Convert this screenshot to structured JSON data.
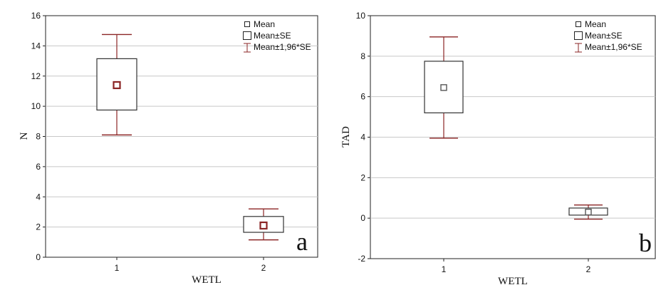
{
  "chart_data": [
    {
      "type": "box",
      "panel_label": "a",
      "xlabel": "WETL",
      "ylabel": "N",
      "categories": [
        "1",
        "2"
      ],
      "ylim": [
        0,
        16
      ],
      "yticks": [
        "0",
        "2",
        "4",
        "6",
        "8",
        "10",
        "12",
        "14",
        "16"
      ],
      "grid": true,
      "legend_position": "top-right",
      "legend": [
        "Mean",
        "Mean±SE",
        "Mean±1,96*SE"
      ],
      "stats": [
        {
          "category": "1",
          "mean": 11.4,
          "se_low": 9.75,
          "se_high": 13.15,
          "ci_low": 8.1,
          "ci_high": 14.75
        },
        {
          "category": "2",
          "mean": 2.1,
          "se_low": 1.65,
          "se_high": 2.7,
          "ci_low": 1.15,
          "ci_high": 3.2
        }
      ],
      "colors": {
        "box": "#333333",
        "whisker": "#8b2525",
        "mean_marker": "#8b2525"
      }
    },
    {
      "type": "box",
      "panel_label": "b",
      "xlabel": "WETL",
      "ylabel": "TAD",
      "categories": [
        "1",
        "2"
      ],
      "ylim": [
        -2,
        10
      ],
      "yticks": [
        "-2",
        "0",
        "2",
        "4",
        "6",
        "8",
        "10"
      ],
      "grid": true,
      "legend_position": "top-right",
      "legend": [
        "Mean",
        "Mean±SE",
        "Mean±1,96*SE"
      ],
      "stats": [
        {
          "category": "1",
          "mean": 6.45,
          "se_low": 5.2,
          "se_high": 7.75,
          "ci_low": 3.95,
          "ci_high": 8.95
        },
        {
          "category": "2",
          "mean": 0.3,
          "se_low": 0.15,
          "se_high": 0.5,
          "ci_low": -0.05,
          "ci_high": 0.65
        }
      ],
      "colors": {
        "box": "#333333",
        "whisker": "#8b2525",
        "mean_marker": "#555555"
      }
    }
  ]
}
